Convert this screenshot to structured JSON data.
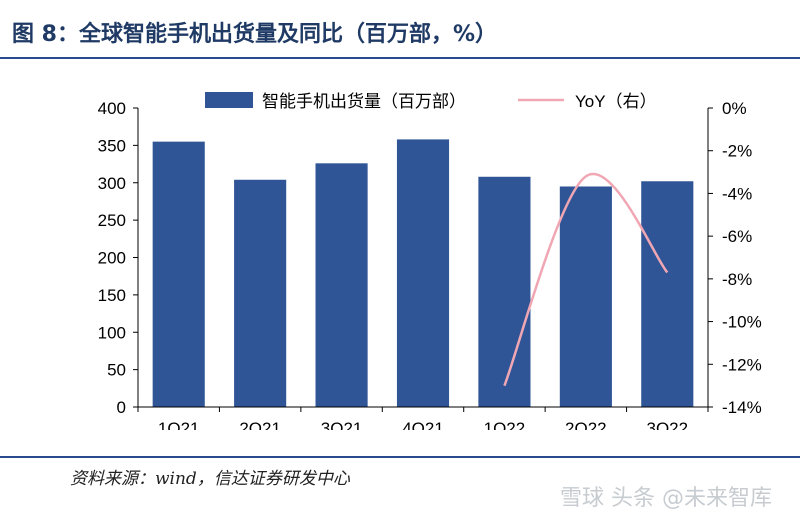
{
  "figure": {
    "title": "图 8：全球智能手机出货量及同比（百万部，%）",
    "source": "资料来源：wind，信达证券研发中心",
    "watermark": "雪球 头条 @未来智库"
  },
  "colors": {
    "bar": "#2f5597",
    "line": "#f0a7b3",
    "text": "#000000"
  },
  "chart_data": {
    "type": "bar",
    "categories": [
      "1Q21",
      "2Q21",
      "3Q21",
      "4Q21",
      "1Q22",
      "2Q22",
      "3Q22"
    ],
    "series": [
      {
        "name": "智能手机出货量（百万部）",
        "type": "bar",
        "axis": "left",
        "values": [
          355,
          304,
          326,
          358,
          308,
          295,
          302
        ]
      },
      {
        "name": "YoY（右）",
        "type": "line",
        "axis": "right",
        "values": [
          null,
          null,
          null,
          null,
          -13.0,
          -3.2,
          -7.7
        ]
      }
    ],
    "left_axis": {
      "ylim": [
        0,
        400
      ],
      "ticks": [
        0,
        50,
        100,
        150,
        200,
        250,
        300,
        350,
        400
      ],
      "tick_labels": [
        "0",
        "50",
        "100",
        "150",
        "200",
        "250",
        "300",
        "350",
        "400"
      ]
    },
    "right_axis": {
      "ylim": [
        -14,
        0
      ],
      "ticks": [
        0,
        -2,
        -4,
        -6,
        -8,
        -10,
        -12,
        -14
      ],
      "tick_labels": [
        "0%",
        "-2%",
        "-4%",
        "-6%",
        "-8%",
        "-10%",
        "-12%",
        "-14%"
      ]
    },
    "legend_position": "top",
    "grid": false
  }
}
